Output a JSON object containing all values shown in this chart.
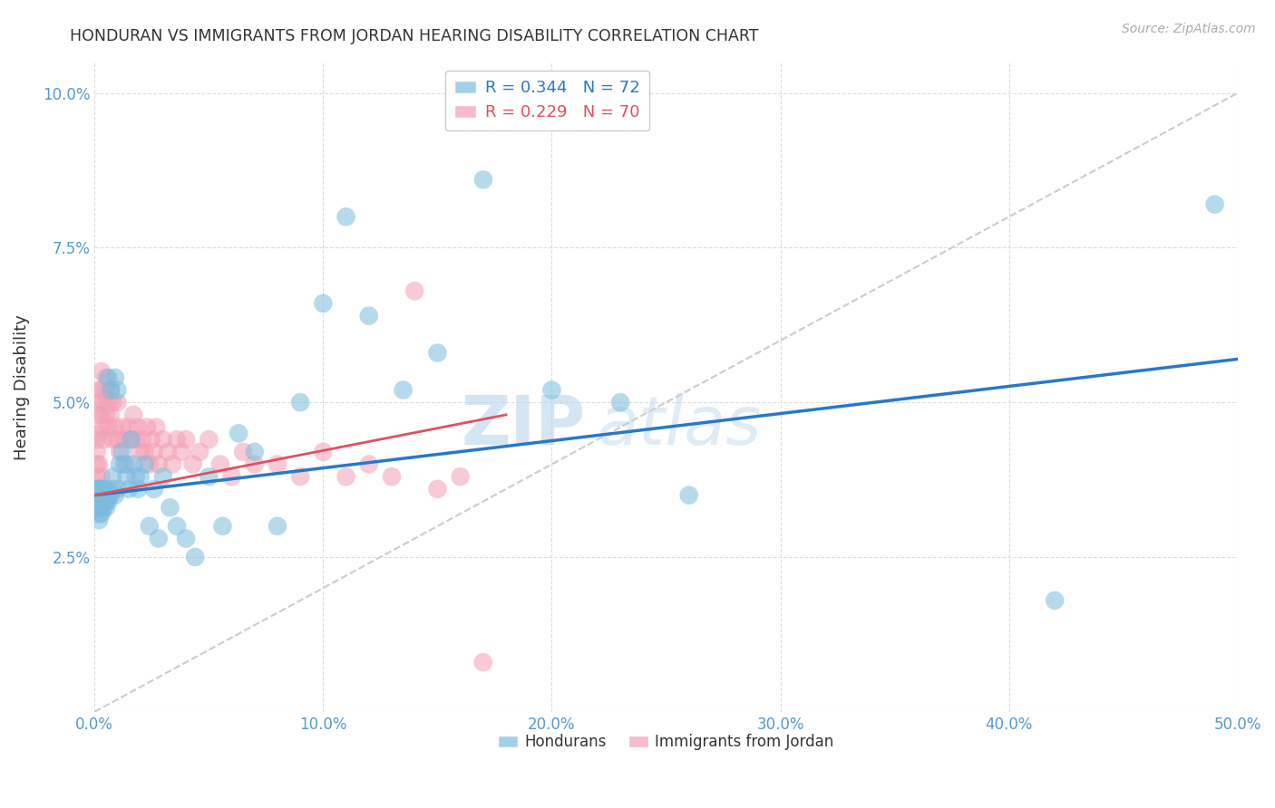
{
  "title": "HONDURAN VS IMMIGRANTS FROM JORDAN HEARING DISABILITY CORRELATION CHART",
  "source": "Source: ZipAtlas.com",
  "ylabel": "Hearing Disability",
  "xlim": [
    0.0,
    0.5
  ],
  "ylim": [
    0.0,
    0.105
  ],
  "xticks": [
    0.0,
    0.1,
    0.2,
    0.3,
    0.4,
    0.5
  ],
  "xticklabels": [
    "0.0%",
    "10.0%",
    "20.0%",
    "30.0%",
    "40.0%",
    "50.0%"
  ],
  "yticks": [
    0.0,
    0.025,
    0.05,
    0.075,
    0.1
  ],
  "yticklabels": [
    "",
    "2.5%",
    "5.0%",
    "7.5%",
    "10.0%"
  ],
  "legend1_label": "R = 0.344   N = 72",
  "legend2_label": "R = 0.229   N = 70",
  "blue_color": "#7bbcde",
  "pink_color": "#f4a0b5",
  "trendline_blue": "#2878c8",
  "trendline_pink": "#e05060",
  "trendline_dashed_color": "#cccccc",
  "background_color": "#ffffff",
  "grid_color": "#dddddd",
  "axis_label_color": "#5599cc",
  "title_color": "#333333",
  "hondurans_x": [
    0.001,
    0.001,
    0.001,
    0.001,
    0.002,
    0.002,
    0.002,
    0.002,
    0.002,
    0.002,
    0.002,
    0.003,
    0.003,
    0.003,
    0.003,
    0.003,
    0.003,
    0.004,
    0.004,
    0.004,
    0.004,
    0.005,
    0.005,
    0.005,
    0.005,
    0.006,
    0.006,
    0.006,
    0.007,
    0.007,
    0.008,
    0.008,
    0.009,
    0.009,
    0.01,
    0.01,
    0.011,
    0.012,
    0.013,
    0.014,
    0.015,
    0.016,
    0.017,
    0.018,
    0.019,
    0.02,
    0.022,
    0.024,
    0.026,
    0.028,
    0.03,
    0.033,
    0.036,
    0.04,
    0.044,
    0.05,
    0.056,
    0.063,
    0.07,
    0.08,
    0.09,
    0.1,
    0.11,
    0.12,
    0.135,
    0.15,
    0.17,
    0.2,
    0.23,
    0.26,
    0.42,
    0.49
  ],
  "hondurans_y": [
    0.035,
    0.033,
    0.036,
    0.034,
    0.032,
    0.035,
    0.033,
    0.036,
    0.034,
    0.031,
    0.036,
    0.035,
    0.033,
    0.036,
    0.034,
    0.032,
    0.035,
    0.033,
    0.036,
    0.034,
    0.035,
    0.033,
    0.036,
    0.034,
    0.035,
    0.054,
    0.035,
    0.034,
    0.052,
    0.035,
    0.036,
    0.038,
    0.054,
    0.035,
    0.052,
    0.036,
    0.04,
    0.042,
    0.04,
    0.038,
    0.036,
    0.044,
    0.04,
    0.038,
    0.036,
    0.038,
    0.04,
    0.03,
    0.036,
    0.028,
    0.038,
    0.033,
    0.03,
    0.028,
    0.025,
    0.038,
    0.03,
    0.045,
    0.042,
    0.03,
    0.05,
    0.066,
    0.08,
    0.064,
    0.052,
    0.058,
    0.086,
    0.052,
    0.05,
    0.035,
    0.018,
    0.082
  ],
  "jordan_x": [
    0.001,
    0.001,
    0.001,
    0.001,
    0.001,
    0.002,
    0.002,
    0.002,
    0.002,
    0.002,
    0.003,
    0.003,
    0.003,
    0.003,
    0.004,
    0.004,
    0.004,
    0.005,
    0.005,
    0.005,
    0.006,
    0.006,
    0.007,
    0.007,
    0.008,
    0.008,
    0.009,
    0.01,
    0.01,
    0.011,
    0.012,
    0.013,
    0.014,
    0.015,
    0.016,
    0.017,
    0.018,
    0.019,
    0.02,
    0.021,
    0.022,
    0.023,
    0.024,
    0.025,
    0.026,
    0.027,
    0.028,
    0.03,
    0.032,
    0.034,
    0.036,
    0.038,
    0.04,
    0.043,
    0.046,
    0.05,
    0.055,
    0.06,
    0.065,
    0.07,
    0.08,
    0.09,
    0.1,
    0.11,
    0.12,
    0.13,
    0.14,
    0.15,
    0.16,
    0.17
  ],
  "jordan_y": [
    0.036,
    0.04,
    0.044,
    0.038,
    0.042,
    0.04,
    0.045,
    0.048,
    0.052,
    0.05,
    0.038,
    0.048,
    0.052,
    0.055,
    0.046,
    0.05,
    0.044,
    0.048,
    0.052,
    0.054,
    0.046,
    0.05,
    0.052,
    0.048,
    0.044,
    0.05,
    0.046,
    0.044,
    0.05,
    0.042,
    0.046,
    0.044,
    0.04,
    0.046,
    0.044,
    0.048,
    0.044,
    0.046,
    0.042,
    0.044,
    0.042,
    0.046,
    0.04,
    0.044,
    0.042,
    0.046,
    0.04,
    0.044,
    0.042,
    0.04,
    0.044,
    0.042,
    0.044,
    0.04,
    0.042,
    0.044,
    0.04,
    0.038,
    0.042,
    0.04,
    0.04,
    0.038,
    0.042,
    0.038,
    0.04,
    0.038,
    0.068,
    0.036,
    0.038,
    0.008
  ],
  "blue_trendline_endpoints": [
    0.0,
    0.5,
    0.035,
    0.057
  ],
  "pink_trendline_endpoints": [
    0.0,
    0.18,
    0.035,
    0.048
  ],
  "dashed_line_endpoints": [
    0.0,
    0.5,
    0.0,
    0.1
  ]
}
